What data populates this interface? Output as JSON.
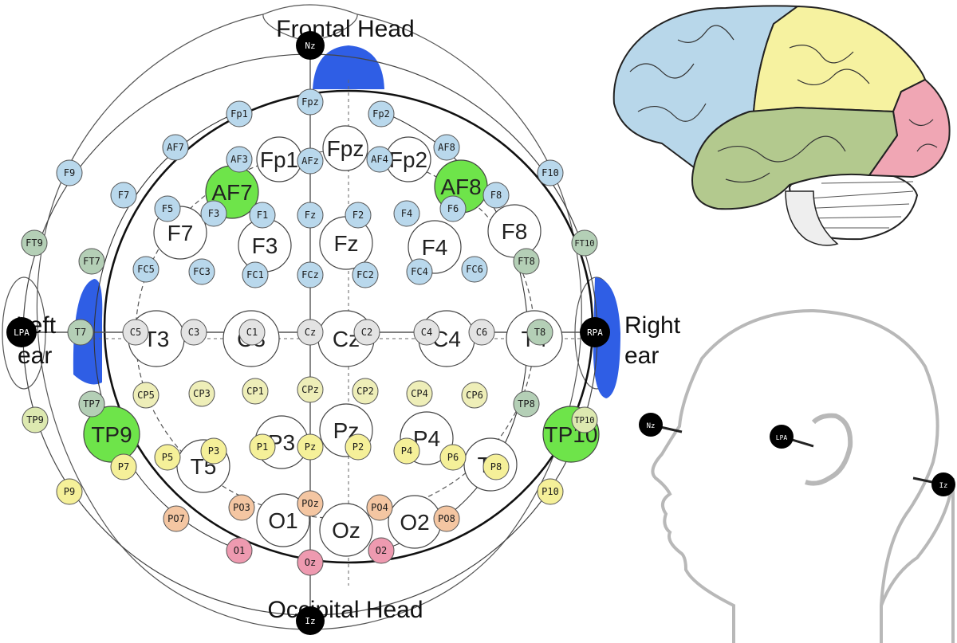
{
  "titles": {
    "frontal": "Frontal Head",
    "occipital": "Occipital Head",
    "left_ear_1": "Left",
    "left_ear_2": "ear",
    "right_ear_1": "Right",
    "right_ear_2": "ear"
  },
  "landmarks": {
    "nz": "Nz",
    "iz": "Iz",
    "lpa": "LPA",
    "rpa": "RPA"
  },
  "profile_labels": {
    "nz": "Nz",
    "lpa": "LPA",
    "iz": "Iz"
  },
  "colors": {
    "frontal": "#b9d8ec",
    "central": "#e3e3e3",
    "parietal": "#eeeeb8",
    "occ_parietal": "#f5f099",
    "parieto_occ": "#f4c6a2",
    "occipital": "#ee9ab0",
    "temporal": "#b4cfb6",
    "temporal_light": "#dde9b0",
    "highlight": "#6ee44a",
    "ear_band": "#2f5ee5",
    "brain_frontal": "#b8d7ea",
    "brain_parietal": "#f6f2a0",
    "brain_temporal": "#b3c98e",
    "brain_occipital": "#f0a6b4",
    "brain_cerebellum": "#ffffff"
  },
  "large_electrodes": [
    "Fp1",
    "Fpz",
    "Fp2",
    "F7",
    "F3",
    "Fz",
    "F4",
    "F8",
    "T3",
    "C3",
    "Cz",
    "C4",
    "T4",
    "T5",
    "P3",
    "Pz",
    "P4",
    "T6",
    "O1",
    "Oz",
    "O2"
  ],
  "small_electrodes": {
    "frontal": [
      "Fp1",
      "Fpz",
      "Fp2",
      "AF7",
      "AF3",
      "AFz",
      "AF4",
      "AF8",
      "F9",
      "F7",
      "F5",
      "F3",
      "F1",
      "Fz",
      "F2",
      "F4",
      "F6",
      "F8",
      "F10",
      "FC5",
      "FC3",
      "FC1",
      "FCz",
      "FC2",
      "FC4",
      "FC6"
    ],
    "temporal": [
      "FT9",
      "FT7",
      "FT8",
      "FT10",
      "T7",
      "T8",
      "TP7",
      "TP8"
    ],
    "central": [
      "C5",
      "C3",
      "C1",
      "Cz",
      "C2",
      "C4",
      "C6"
    ],
    "centro_parietal": [
      "CP5",
      "CP3",
      "CP1",
      "CPz",
      "CP2",
      "CP4",
      "CP6",
      "TP9",
      "TP10"
    ],
    "parietal": [
      "P9",
      "P7",
      "P5",
      "P3",
      "P1",
      "Pz",
      "P2",
      "P4",
      "P6",
      "P8",
      "P10"
    ],
    "parieto_occipital": [
      "PO7",
      "PO3",
      "POz",
      "PO4",
      "PO8"
    ],
    "occipital": [
      "O1",
      "Oz",
      "O2"
    ]
  },
  "highlighted_large": [
    "AF7",
    "AF8",
    "TP9",
    "TP10"
  ]
}
